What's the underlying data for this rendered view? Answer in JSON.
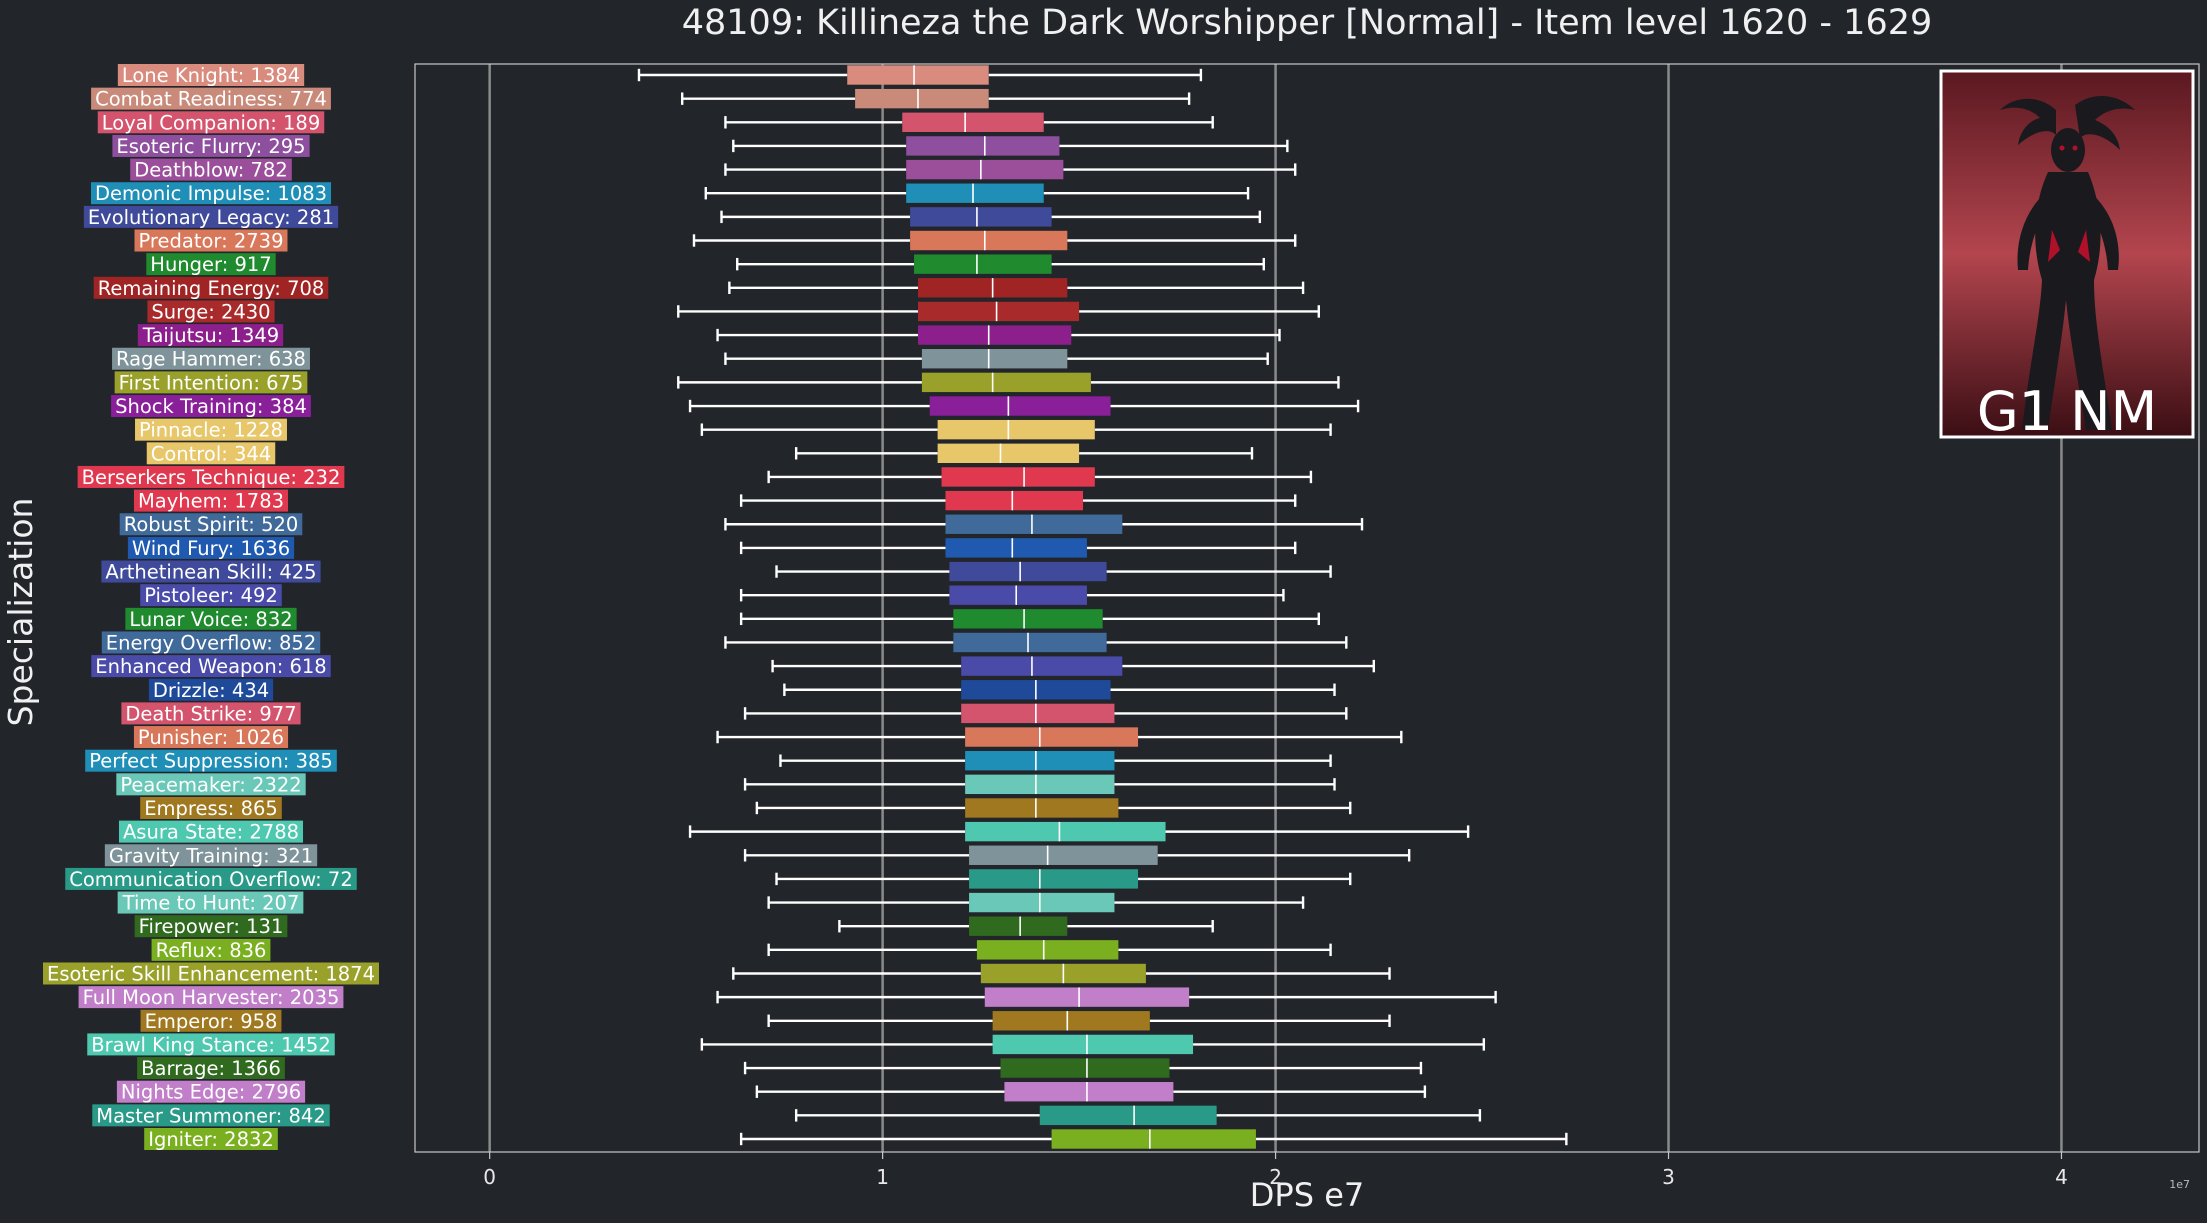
{
  "chart_data": {
    "type": "box",
    "title": "48109: Killineza the Dark Worshipper [Normal] - Item level 1620 - 1629",
    "xlabel": "DPS e7",
    "ylabel": "Specialization",
    "x_scale_note": "1e7",
    "xlim": [
      -0.19,
      4.35
    ],
    "xticks": [
      0,
      1,
      2,
      3,
      4
    ],
    "grid": "vertical",
    "inset_label": "G1 NM",
    "categories": [
      {
        "label": "Lone Knight: 1384",
        "color": "#d98c7e",
        "wl": 0.38,
        "q1": 0.91,
        "med": 1.08,
        "q3": 1.27,
        "wh": 1.81
      },
      {
        "label": "Combat Readiness: 774",
        "color": "#c98a7a",
        "wl": 0.49,
        "q1": 0.93,
        "med": 1.09,
        "q3": 1.27,
        "wh": 1.78
      },
      {
        "label": "Loyal Companion: 189",
        "color": "#d4546e",
        "wl": 0.6,
        "q1": 1.05,
        "med": 1.21,
        "q3": 1.41,
        "wh": 1.84
      },
      {
        "label": "Esoteric Flurry: 295",
        "color": "#8e4f9e",
        "wl": 0.62,
        "q1": 1.06,
        "med": 1.26,
        "q3": 1.45,
        "wh": 2.03
      },
      {
        "label": "Deathblow: 782",
        "color": "#9b4f9a",
        "wl": 0.6,
        "q1": 1.06,
        "med": 1.25,
        "q3": 1.46,
        "wh": 2.05
      },
      {
        "label": "Demonic Impulse: 1083",
        "color": "#1f8fb8",
        "wl": 0.55,
        "q1": 1.06,
        "med": 1.23,
        "q3": 1.41,
        "wh": 1.93
      },
      {
        "label": "Evolutionary Legacy: 281",
        "color": "#3f4a9a",
        "wl": 0.59,
        "q1": 1.07,
        "med": 1.24,
        "q3": 1.43,
        "wh": 1.96
      },
      {
        "label": "Predator: 2739",
        "color": "#d9775a",
        "wl": 0.52,
        "q1": 1.07,
        "med": 1.26,
        "q3": 1.47,
        "wh": 2.05
      },
      {
        "label": "Hunger: 917",
        "color": "#1f8a2e",
        "wl": 0.63,
        "q1": 1.08,
        "med": 1.24,
        "q3": 1.43,
        "wh": 1.97
      },
      {
        "label": "Remaining Energy: 708",
        "color": "#a02424",
        "wl": 0.61,
        "q1": 1.09,
        "med": 1.28,
        "q3": 1.47,
        "wh": 2.07
      },
      {
        "label": "Surge: 2430",
        "color": "#a82a2a",
        "wl": 0.48,
        "q1": 1.09,
        "med": 1.29,
        "q3": 1.5,
        "wh": 2.11
      },
      {
        "label": "Taijutsu: 1349",
        "color": "#8c1f8c",
        "wl": 0.58,
        "q1": 1.09,
        "med": 1.27,
        "q3": 1.48,
        "wh": 2.01
      },
      {
        "label": "Rage Hammer: 638",
        "color": "#7f949a",
        "wl": 0.6,
        "q1": 1.1,
        "med": 1.27,
        "q3": 1.47,
        "wh": 1.98
      },
      {
        "label": "First Intention: 675",
        "color": "#9aa12a",
        "wl": 0.48,
        "q1": 1.1,
        "med": 1.28,
        "q3": 1.53,
        "wh": 2.16
      },
      {
        "label": "Shock Training: 384",
        "color": "#8a1f9a",
        "wl": 0.51,
        "q1": 1.12,
        "med": 1.32,
        "q3": 1.58,
        "wh": 2.21
      },
      {
        "label": "Pinnacle: 1228",
        "color": "#e8c76a",
        "wl": 0.54,
        "q1": 1.14,
        "med": 1.32,
        "q3": 1.54,
        "wh": 2.14
      },
      {
        "label": "Control: 344",
        "color": "#e8c76a",
        "wl": 0.78,
        "q1": 1.14,
        "med": 1.3,
        "q3": 1.5,
        "wh": 1.94
      },
      {
        "label": "Berserkers Technique: 232",
        "color": "#e0394f",
        "wl": 0.71,
        "q1": 1.15,
        "med": 1.36,
        "q3": 1.54,
        "wh": 2.09
      },
      {
        "label": "Mayhem: 1783",
        "color": "#e0394f",
        "wl": 0.64,
        "q1": 1.16,
        "med": 1.33,
        "q3": 1.51,
        "wh": 2.05
      },
      {
        "label": "Robust Spirit: 520",
        "color": "#3f6a9a",
        "wl": 0.6,
        "q1": 1.16,
        "med": 1.38,
        "q3": 1.61,
        "wh": 2.22
      },
      {
        "label": "Wind Fury: 1636",
        "color": "#1f5ab0",
        "wl": 0.64,
        "q1": 1.16,
        "med": 1.33,
        "q3": 1.52,
        "wh": 2.05
      },
      {
        "label": "Arthetinean Skill: 425",
        "color": "#3f4a9a",
        "wl": 0.73,
        "q1": 1.17,
        "med": 1.35,
        "q3": 1.57,
        "wh": 2.14
      },
      {
        "label": "Pistoleer: 492",
        "color": "#4a4aa8",
        "wl": 0.64,
        "q1": 1.17,
        "med": 1.34,
        "q3": 1.52,
        "wh": 2.02
      },
      {
        "label": "Lunar Voice: 832",
        "color": "#1f8a2e",
        "wl": 0.64,
        "q1": 1.18,
        "med": 1.36,
        "q3": 1.56,
        "wh": 2.11
      },
      {
        "label": "Energy Overflow: 852",
        "color": "#3f6a9a",
        "wl": 0.6,
        "q1": 1.18,
        "med": 1.37,
        "q3": 1.57,
        "wh": 2.18
      },
      {
        "label": "Enhanced Weapon: 618",
        "color": "#4a4aa8",
        "wl": 0.72,
        "q1": 1.2,
        "med": 1.38,
        "q3": 1.61,
        "wh": 2.25
      },
      {
        "label": "Drizzle: 434",
        "color": "#1f4a9a",
        "wl": 0.75,
        "q1": 1.2,
        "med": 1.39,
        "q3": 1.58,
        "wh": 2.15
      },
      {
        "label": "Death Strike: 977",
        "color": "#d4546e",
        "wl": 0.65,
        "q1": 1.2,
        "med": 1.39,
        "q3": 1.59,
        "wh": 2.18
      },
      {
        "label": "Punisher: 1026",
        "color": "#d9775a",
        "wl": 0.58,
        "q1": 1.21,
        "med": 1.4,
        "q3": 1.65,
        "wh": 2.32
      },
      {
        "label": "Perfect Suppression: 385",
        "color": "#1f8fb8",
        "wl": 0.74,
        "q1": 1.21,
        "med": 1.39,
        "q3": 1.59,
        "wh": 2.14
      },
      {
        "label": "Peacemaker: 2322",
        "color": "#6ac8b8",
        "wl": 0.65,
        "q1": 1.21,
        "med": 1.39,
        "q3": 1.59,
        "wh": 2.15
      },
      {
        "label": "Empress: 865",
        "color": "#a0781f",
        "wl": 0.68,
        "q1": 1.21,
        "med": 1.39,
        "q3": 1.6,
        "wh": 2.19
      },
      {
        "label": "Asura State: 2788",
        "color": "#4ec9b0",
        "wl": 0.51,
        "q1": 1.21,
        "med": 1.45,
        "q3": 1.72,
        "wh": 2.49
      },
      {
        "label": "Gravity Training: 321",
        "color": "#7f949a",
        "wl": 0.65,
        "q1": 1.22,
        "med": 1.42,
        "q3": 1.7,
        "wh": 2.34
      },
      {
        "label": "Communication Overflow: 72",
        "color": "#2a9a88",
        "wl": 0.73,
        "q1": 1.22,
        "med": 1.4,
        "q3": 1.65,
        "wh": 2.19
      },
      {
        "label": "Time to Hunt: 207",
        "color": "#6ac8b8",
        "wl": 0.71,
        "q1": 1.22,
        "med": 1.4,
        "q3": 1.59,
        "wh": 2.07
      },
      {
        "label": "Firepower: 131",
        "color": "#2f6a1f",
        "wl": 0.89,
        "q1": 1.22,
        "med": 1.35,
        "q3": 1.47,
        "wh": 1.84
      },
      {
        "label": "Reflux: 836",
        "color": "#7ab01f",
        "wl": 0.71,
        "q1": 1.24,
        "med": 1.41,
        "q3": 1.6,
        "wh": 2.14
      },
      {
        "label": "Esoteric Skill Enhancement: 1874",
        "color": "#9aa12a",
        "wl": 0.62,
        "q1": 1.25,
        "med": 1.46,
        "q3": 1.67,
        "wh": 2.29
      },
      {
        "label": "Full Moon Harvester: 2035",
        "color": "#c17ec9",
        "wl": 0.58,
        "q1": 1.26,
        "med": 1.5,
        "q3": 1.78,
        "wh": 2.56
      },
      {
        "label": "Emperor: 958",
        "color": "#a0781f",
        "wl": 0.71,
        "q1": 1.28,
        "med": 1.47,
        "q3": 1.68,
        "wh": 2.29
      },
      {
        "label": "Brawl King Stance: 1452",
        "color": "#4ec9b0",
        "wl": 0.54,
        "q1": 1.28,
        "med": 1.52,
        "q3": 1.79,
        "wh": 2.53
      },
      {
        "label": "Barrage: 1366",
        "color": "#2f6a1f",
        "wl": 0.65,
        "q1": 1.3,
        "med": 1.52,
        "q3": 1.73,
        "wh": 2.37
      },
      {
        "label": "Nights Edge: 2796",
        "color": "#c17ec9",
        "wl": 0.68,
        "q1": 1.31,
        "med": 1.52,
        "q3": 1.74,
        "wh": 2.38
      },
      {
        "label": "Master Summoner: 842",
        "color": "#2a9a88",
        "wl": 0.78,
        "q1": 1.4,
        "med": 1.64,
        "q3": 1.85,
        "wh": 2.52
      },
      {
        "label": "Igniter: 2832",
        "color": "#7ab01f",
        "wl": 0.64,
        "q1": 1.43,
        "med": 1.68,
        "q3": 1.95,
        "wh": 2.74
      }
    ]
  }
}
